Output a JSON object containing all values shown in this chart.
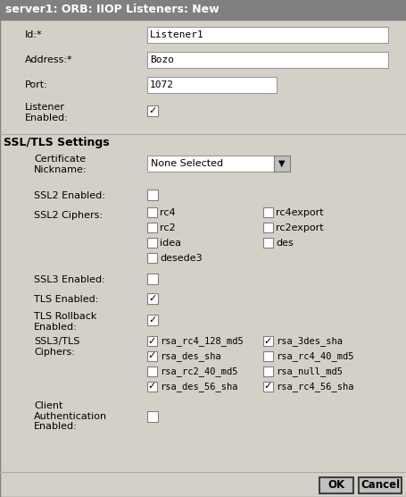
{
  "title": "server1: ORB: IIOP Listeners: New",
  "bg_color": "#d4d0c8",
  "figsize": [
    4.56,
    5.56
  ],
  "dpi": 100,
  "button_ok": "OK",
  "button_cancel": "Cancel",
  "ssl2_items": [
    {
      "text": "rc4",
      "checked": false,
      "col": 0,
      "row": 0
    },
    {
      "text": "rc4export",
      "checked": false,
      "col": 1,
      "row": 0
    },
    {
      "text": "rc2",
      "checked": false,
      "col": 0,
      "row": 1
    },
    {
      "text": "rc2export",
      "checked": false,
      "col": 1,
      "row": 1
    },
    {
      "text": "idea",
      "checked": false,
      "col": 0,
      "row": 2
    },
    {
      "text": "des",
      "checked": false,
      "col": 1,
      "row": 2
    },
    {
      "text": "desede3",
      "checked": false,
      "col": 0,
      "row": 3
    }
  ],
  "ssl3_items": [
    {
      "text": "rsa_rc4_128_md5",
      "checked": true,
      "col": 0,
      "row": 0
    },
    {
      "text": "rsa_3des_sha",
      "checked": true,
      "col": 1,
      "row": 0
    },
    {
      "text": "rsa_des_sha",
      "checked": true,
      "col": 0,
      "row": 1
    },
    {
      "text": "rsa_rc4_40_md5",
      "checked": false,
      "col": 1,
      "row": 1
    },
    {
      "text": "rsa_rc2_40_md5",
      "checked": false,
      "col": 0,
      "row": 2
    },
    {
      "text": "rsa_null_md5",
      "checked": false,
      "col": 1,
      "row": 2
    },
    {
      "text": "rsa_des_56_sha",
      "checked": true,
      "col": 0,
      "row": 3
    },
    {
      "text": "rsa_rc4_56_sha",
      "checked": true,
      "col": 1,
      "row": 3
    }
  ]
}
